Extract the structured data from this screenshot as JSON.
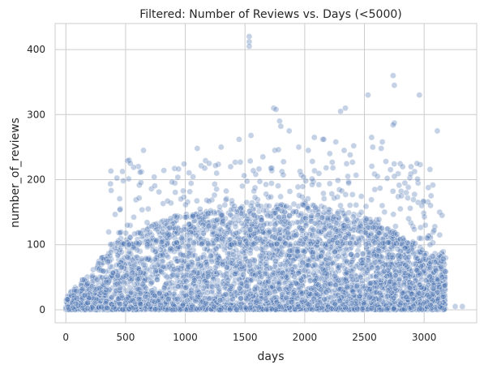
{
  "chart_data": {
    "type": "scatter",
    "title": "Filtered: Number of Reviews vs. Days (<5000)",
    "xlabel": "days",
    "ylabel": "number_of_reviews",
    "xlim": [
      -90,
      3440
    ],
    "ylim": [
      -20,
      440
    ],
    "grid": true,
    "color": "#4c72b0",
    "x_ticks": [
      0,
      500,
      1000,
      1500,
      2000,
      2500,
      3000
    ],
    "y_ticks": [
      0,
      100,
      200,
      300,
      400
    ],
    "x_tick_labels": [
      "0",
      "500",
      "1000",
      "1500",
      "2000",
      "2500",
      "3000"
    ],
    "y_tick_labels": [
      "0",
      "100",
      "200",
      "300",
      "400"
    ],
    "points": [
      [
        1535,
        420
      ],
      [
        1535,
        412
      ],
      [
        1535,
        405
      ],
      [
        2740,
        360
      ],
      [
        2750,
        345
      ],
      [
        2960,
        330
      ],
      [
        2530,
        330
      ],
      [
        1740,
        310
      ],
      [
        1760,
        308
      ],
      [
        2340,
        310
      ],
      [
        2300,
        305
      ],
      [
        2750,
        287
      ],
      [
        2740,
        284
      ],
      [
        1790,
        290
      ],
      [
        1800,
        282
      ],
      [
        1870,
        275
      ],
      [
        2080,
        265
      ],
      [
        2150,
        262
      ],
      [
        2160,
        262
      ],
      [
        3110,
        275
      ],
      [
        2260,
        258
      ],
      [
        2410,
        252
      ],
      [
        2570,
        250
      ],
      [
        2640,
        248
      ],
      [
        2650,
        258
      ],
      [
        650,
        245
      ],
      [
        1100,
        248
      ],
      [
        1550,
        268
      ],
      [
        1450,
        262
      ],
      [
        2330,
        245
      ],
      [
        2380,
        238
      ],
      [
        530,
        230
      ],
      [
        540,
        225
      ],
      [
        1750,
        245
      ],
      [
        1780,
        246
      ],
      [
        2210,
        240
      ],
      [
        2560,
        265
      ],
      [
        2940,
        225
      ],
      [
        2890,
        220
      ],
      [
        2820,
        220
      ],
      [
        2750,
        205
      ],
      [
        2680,
        228
      ],
      [
        2610,
        205
      ],
      [
        1200,
        225
      ],
      [
        1300,
        250
      ],
      [
        1380,
        220
      ],
      [
        1650,
        235
      ],
      [
        1950,
        250
      ],
      [
        2030,
        245
      ],
      [
        3130,
        150
      ],
      [
        3150,
        145
      ],
      [
        3130,
        115
      ],
      [
        3160,
        78
      ],
      [
        3150,
        50
      ],
      [
        3160,
        20
      ],
      [
        3130,
        10
      ],
      [
        3260,
        5
      ],
      [
        3320,
        5
      ],
      [
        3010,
        130
      ],
      [
        3050,
        100
      ],
      [
        3100,
        60
      ],
      [
        2950,
        165
      ],
      [
        2980,
        160
      ],
      [
        2960,
        110
      ],
      [
        2850,
        180
      ],
      [
        2810,
        175
      ],
      [
        2870,
        140
      ]
    ]
  }
}
